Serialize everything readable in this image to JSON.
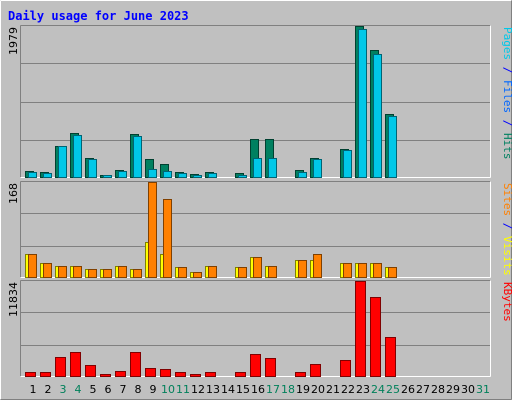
{
  "chart_data": {
    "type": "bar",
    "title": "Daily usage for June 2023",
    "categories": [
      "1",
      "2",
      "3",
      "4",
      "5",
      "6",
      "7",
      "8",
      "9",
      "10",
      "11",
      "12",
      "13",
      "14",
      "15",
      "16",
      "17",
      "18",
      "19",
      "20",
      "21",
      "22",
      "23",
      "24",
      "25",
      "26",
      "27",
      "28",
      "29",
      "30",
      "31"
    ],
    "weekend_days": [
      "3",
      "4",
      "10",
      "11",
      "17",
      "18",
      "24",
      "25",
      "31"
    ],
    "panels": [
      {
        "name": "hits-files-pages",
        "ylim": [
          0,
          1979
        ],
        "max_label": "1979",
        "axis_label_parts": [
          {
            "text": "Pages",
            "color": "#00C8E8"
          },
          {
            "text": " / ",
            "color": "#0000FF"
          },
          {
            "text": "Files",
            "color": "#0066FF"
          },
          {
            "text": " / ",
            "color": "#0000FF"
          },
          {
            "text": "Hits",
            "color": "#008060"
          }
        ],
        "series": [
          {
            "name": "Hits",
            "color": "#008060",
            "values": [
              80,
              60,
              400,
              580,
              250,
              30,
              90,
              560,
              230,
              170,
              70,
              40,
              60,
              0,
              50,
              500,
              500,
              0,
              90,
              250,
              0,
              370,
              1979,
              1670,
              820,
              0,
              0,
              0,
              0,
              0,
              0
            ]
          },
          {
            "name": "Files",
            "color": "#00C8E8",
            "values": [
              70,
              50,
              400,
              550,
              240,
              20,
              80,
              540,
              100,
              80,
              50,
              30,
              50,
              0,
              30,
              250,
              250,
              0,
              70,
              240,
              0,
              350,
              1940,
              1610,
              800,
              0,
              0,
              0,
              0,
              0,
              0
            ]
          }
        ]
      },
      {
        "name": "visits-sites",
        "ylim": [
          0,
          168
        ],
        "max_label": "168",
        "axis_label_parts": [
          {
            "text": "Sites",
            "color": "#FF8000"
          },
          {
            "text": " / ",
            "color": "#0000FF"
          },
          {
            "text": "Visits",
            "color": "#FFFF00"
          }
        ],
        "series": [
          {
            "name": "Visits",
            "color": "#FFFF00",
            "values": [
              40,
              25,
              20,
              20,
              15,
              15,
              20,
              15,
              62,
              40,
              18,
              8,
              20,
              0,
              17,
              35,
              19,
              0,
              30,
              30,
              0,
              24,
              24,
              24,
              18,
              0,
              0,
              0,
              0,
              0,
              0
            ]
          },
          {
            "name": "Sites",
            "color": "#FF8000",
            "values": [
              40,
              25,
              20,
              20,
              15,
              15,
              20,
              15,
              168,
              138,
              18,
              8,
              20,
              0,
              17,
              35,
              19,
              0,
              30,
              40,
              0,
              24,
              24,
              24,
              18,
              0,
              0,
              0,
              0,
              0,
              0
            ]
          }
        ]
      },
      {
        "name": "kbytes",
        "ylim": [
          0,
          11834
        ],
        "max_label": "11834",
        "axis_label_parts": [
          {
            "text": "KBytes",
            "color": "#FF0000"
          }
        ],
        "series": [
          {
            "name": "KBytes",
            "color": "#FF0000",
            "values": [
              550,
              450,
              2400,
              3000,
              1400,
              120,
              600,
              3000,
              1000,
              900,
              450,
              200,
              450,
              0,
              450,
              2700,
              2200,
              0,
              450,
              1500,
              0,
              2000,
              11834,
              9900,
              4800,
              0,
              0,
              0,
              0,
              0,
              0
            ]
          }
        ]
      }
    ]
  }
}
